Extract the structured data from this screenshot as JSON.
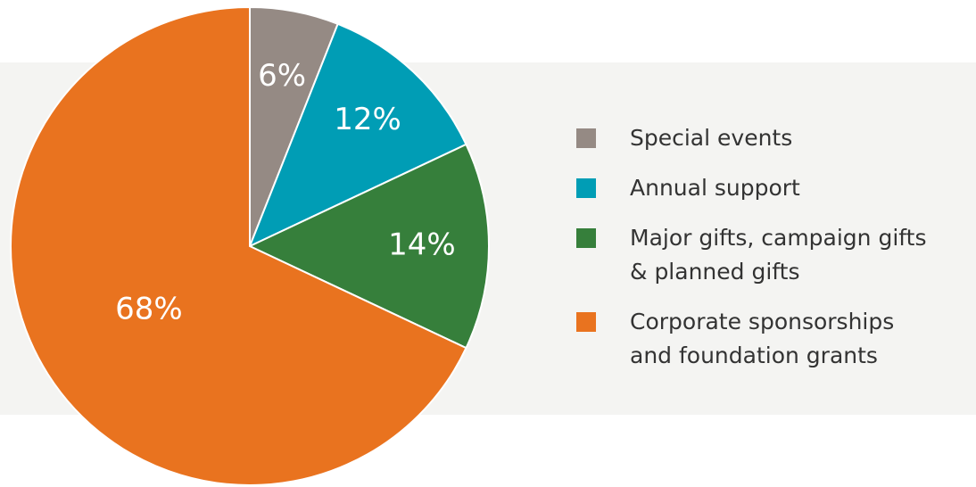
{
  "chart_data": {
    "type": "pie",
    "categories": [
      "Special events",
      "Annual support",
      "Major gifts, campaign gifts & planned gifts",
      "Corporate sponsorships and foundation grants"
    ],
    "values": [
      6,
      12,
      14,
      68
    ],
    "value_labels": [
      "6%",
      "12%",
      "14%",
      "68%"
    ],
    "colors": [
      "#958a84",
      "#009db5",
      "#367f3b",
      "#e9731f"
    ],
    "legend": "right"
  }
}
